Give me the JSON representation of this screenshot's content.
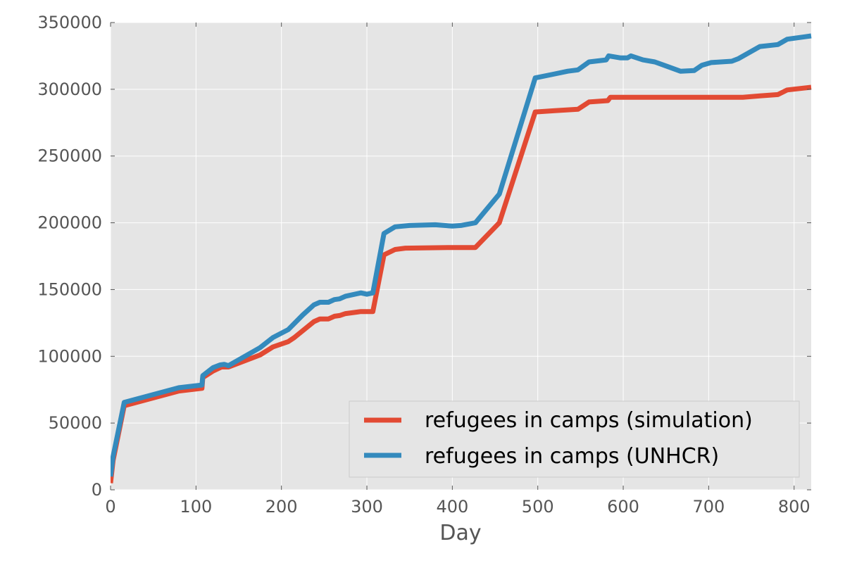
{
  "chart_data": {
    "type": "line",
    "title": "",
    "xlabel": "Day",
    "ylabel": "",
    "xlim": [
      0,
      820
    ],
    "ylim": [
      0,
      350000
    ],
    "x_ticks": [
      0,
      100,
      200,
      300,
      400,
      500,
      600,
      700,
      800
    ],
    "y_ticks": [
      0,
      50000,
      100000,
      150000,
      200000,
      250000,
      300000,
      350000
    ],
    "grid": true,
    "legend_position": "lower-right",
    "series": [
      {
        "name": "refugees in camps (simulation)",
        "color": "#E24A33",
        "points": [
          [
            0,
            5000
          ],
          [
            3,
            22000
          ],
          [
            16,
            63000
          ],
          [
            80,
            74000
          ],
          [
            107,
            76000
          ],
          [
            108,
            84000
          ],
          [
            120,
            89000
          ],
          [
            130,
            92000
          ],
          [
            138,
            92000
          ],
          [
            175,
            101000
          ],
          [
            190,
            107000
          ],
          [
            208,
            111000
          ],
          [
            215,
            114000
          ],
          [
            238,
            126000
          ],
          [
            245,
            128000
          ],
          [
            255,
            128000
          ],
          [
            262,
            130000
          ],
          [
            268,
            130500
          ],
          [
            275,
            132000
          ],
          [
            293,
            133500
          ],
          [
            307,
            133500
          ],
          [
            320,
            176000
          ],
          [
            333,
            180000
          ],
          [
            345,
            181000
          ],
          [
            400,
            181500
          ],
          [
            427,
            181500
          ],
          [
            455,
            200000
          ],
          [
            497,
            283000
          ],
          [
            520,
            284000
          ],
          [
            547,
            285000
          ],
          [
            560,
            290500
          ],
          [
            582,
            291500
          ],
          [
            585,
            294000
          ],
          [
            740,
            294000
          ],
          [
            760,
            295000
          ],
          [
            781,
            296000
          ],
          [
            792,
            299500
          ],
          [
            820,
            301500
          ]
        ]
      },
      {
        "name": "refugees in camps (UNHCR)",
        "color": "#348ABD",
        "points": [
          [
            0,
            10000
          ],
          [
            3,
            25000
          ],
          [
            16,
            65500
          ],
          [
            80,
            76500
          ],
          [
            107,
            78500
          ],
          [
            108,
            85500
          ],
          [
            120,
            91500
          ],
          [
            128,
            93500
          ],
          [
            133,
            94000
          ],
          [
            138,
            93000
          ],
          [
            175,
            106500
          ],
          [
            190,
            114000
          ],
          [
            208,
            120000
          ],
          [
            225,
            131000
          ],
          [
            238,
            138500
          ],
          [
            245,
            140500
          ],
          [
            255,
            140500
          ],
          [
            262,
            142500
          ],
          [
            268,
            143000
          ],
          [
            275,
            145000
          ],
          [
            293,
            147500
          ],
          [
            300,
            146500
          ],
          [
            307,
            147500
          ],
          [
            320,
            192000
          ],
          [
            333,
            197000
          ],
          [
            350,
            198000
          ],
          [
            380,
            198500
          ],
          [
            400,
            197500
          ],
          [
            410,
            198000
          ],
          [
            427,
            200000
          ],
          [
            455,
            221500
          ],
          [
            497,
            308500
          ],
          [
            520,
            311500
          ],
          [
            535,
            313500
          ],
          [
            547,
            314500
          ],
          [
            560,
            320500
          ],
          [
            580,
            322000
          ],
          [
            583,
            325000
          ],
          [
            597,
            323500
          ],
          [
            605,
            323500
          ],
          [
            609,
            325000
          ],
          [
            623,
            322000
          ],
          [
            637,
            320500
          ],
          [
            650,
            317500
          ],
          [
            667,
            313500
          ],
          [
            683,
            314000
          ],
          [
            692,
            318000
          ],
          [
            703,
            320000
          ],
          [
            727,
            321000
          ],
          [
            735,
            323000
          ],
          [
            760,
            332000
          ],
          [
            781,
            333500
          ],
          [
            792,
            337500
          ],
          [
            820,
            340000
          ]
        ]
      }
    ]
  }
}
